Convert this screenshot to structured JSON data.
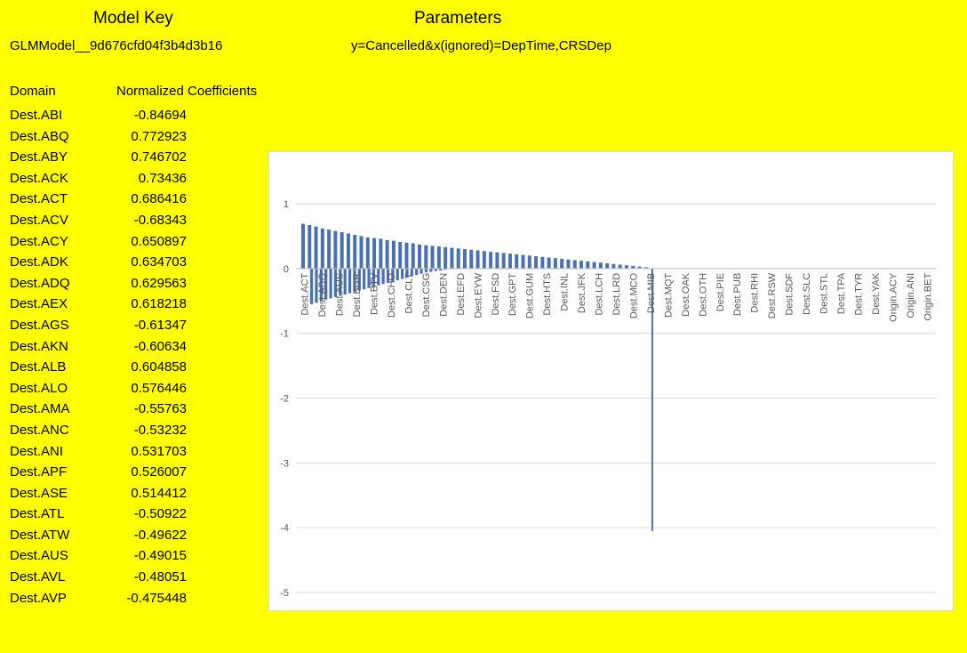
{
  "header": {
    "model_key_label": "Model Key",
    "model_id": "GLMModel__9d676cfd04f3b4d3b16",
    "parameters_label": "Parameters",
    "parameters_value": "y=Cancelled&x(ignored)=DepTime,CRSDep"
  },
  "table": {
    "columns": [
      "Domain",
      "Normalized Coefficients"
    ],
    "rows": [
      [
        "Dest.ABI",
        "-0.84694"
      ],
      [
        "Dest.ABQ",
        "0.772923"
      ],
      [
        "Dest.ABY",
        "0.746702"
      ],
      [
        "Dest.ACK",
        "0.73436"
      ],
      [
        "Dest.ACT",
        "0.686416"
      ],
      [
        "Dest.ACV",
        "-0.68343"
      ],
      [
        "Dest.ACY",
        "0.650897"
      ],
      [
        "Dest.ADK",
        "0.634703"
      ],
      [
        "Dest.ADQ",
        "0.629563"
      ],
      [
        "Dest.AEX",
        "0.618218"
      ],
      [
        "Dest.AGS",
        "-0.61347"
      ],
      [
        "Dest.AKN",
        "-0.60634"
      ],
      [
        "Dest.ALB",
        "0.604858"
      ],
      [
        "Dest.ALO",
        "0.576446"
      ],
      [
        "Dest.AMA",
        "-0.55763"
      ],
      [
        "Dest.ANC",
        "-0.53232"
      ],
      [
        "Dest.ANI",
        "0.531703"
      ],
      [
        "Dest.APF",
        "0.526007"
      ],
      [
        "Dest.ASE",
        "0.514412"
      ],
      [
        "Dest.ATL",
        "-0.50922"
      ],
      [
        "Dest.ATW",
        "-0.49622"
      ],
      [
        "Dest.AUS",
        "-0.49015"
      ],
      [
        "Dest.AVL",
        "-0.48051"
      ],
      [
        "Dest.AVP",
        "-0.475448"
      ]
    ]
  },
  "chart_data": {
    "type": "bar",
    "ylim": [
      -5,
      1
    ],
    "yticks": [
      1,
      0,
      -1,
      -2,
      -3,
      -4,
      -5
    ],
    "grid": true,
    "bar_color": "#4a72b0",
    "visible_category_labels": [
      "Dest.ACT",
      "Dest.ADQ",
      "Dest.AUS",
      "Dest.BGR",
      "Dest.BTV",
      "Dest.CHO",
      "Dest.CLT",
      "Dest.CSG",
      "Dest.DEN",
      "Dest.EFD",
      "Dest.EYW",
      "Dest.FSD",
      "Dest.GPT",
      "Dest.GUM",
      "Dest.HTS",
      "Dest.INL",
      "Dest.JFK",
      "Dest.LCH",
      "Dest.LRD",
      "Dest.MCO",
      "Dest.MIB",
      "Dest.MQT",
      "Dest.OAK",
      "Dest.OTH",
      "Dest.PIE",
      "Dest.PUB",
      "Dest.RHI",
      "Dest.RSW",
      "Dest.SDF",
      "Dest.SLC",
      "Dest.STL",
      "Dest.TPA",
      "Dest.TYR",
      "Dest.YAK",
      "Origin.ACY",
      "Origin.ANI",
      "Origin.BET"
    ],
    "outlier": {
      "category": "Dest.MIB",
      "value": -4.05
    },
    "positive_values": [
      0.69,
      0.67,
      0.65,
      0.62,
      0.6,
      0.58,
      0.56,
      0.54,
      0.52,
      0.5,
      0.48,
      0.47,
      0.46,
      0.44,
      0.43,
      0.41,
      0.4,
      0.39,
      0.37,
      0.36,
      0.35,
      0.34,
      0.33,
      0.32,
      0.31,
      0.3,
      0.29,
      0.28,
      0.27,
      0.26,
      0.25,
      0.24,
      0.23,
      0.22,
      0.21,
      0.2,
      0.19,
      0.18,
      0.17,
      0.16,
      0.15,
      0.14,
      0.13,
      0.12,
      0.11,
      0.1,
      0.09,
      0.08,
      0.07,
      0.06,
      0.05,
      0.04,
      0.03,
      0.02
    ],
    "negative_values": [
      -0.55,
      -0.53,
      -0.5,
      -0.48,
      -0.46,
      -0.44,
      -0.42,
      -0.4,
      -0.38,
      -0.36,
      -0.34,
      -0.32,
      -0.3,
      -0.28,
      -0.26,
      -0.24,
      -0.22,
      -0.2,
      -0.18,
      -0.16,
      -0.14,
      -0.12,
      -0.1,
      -0.08,
      -0.06,
      -0.05,
      -0.04,
      -0.03,
      -0.02
    ]
  }
}
